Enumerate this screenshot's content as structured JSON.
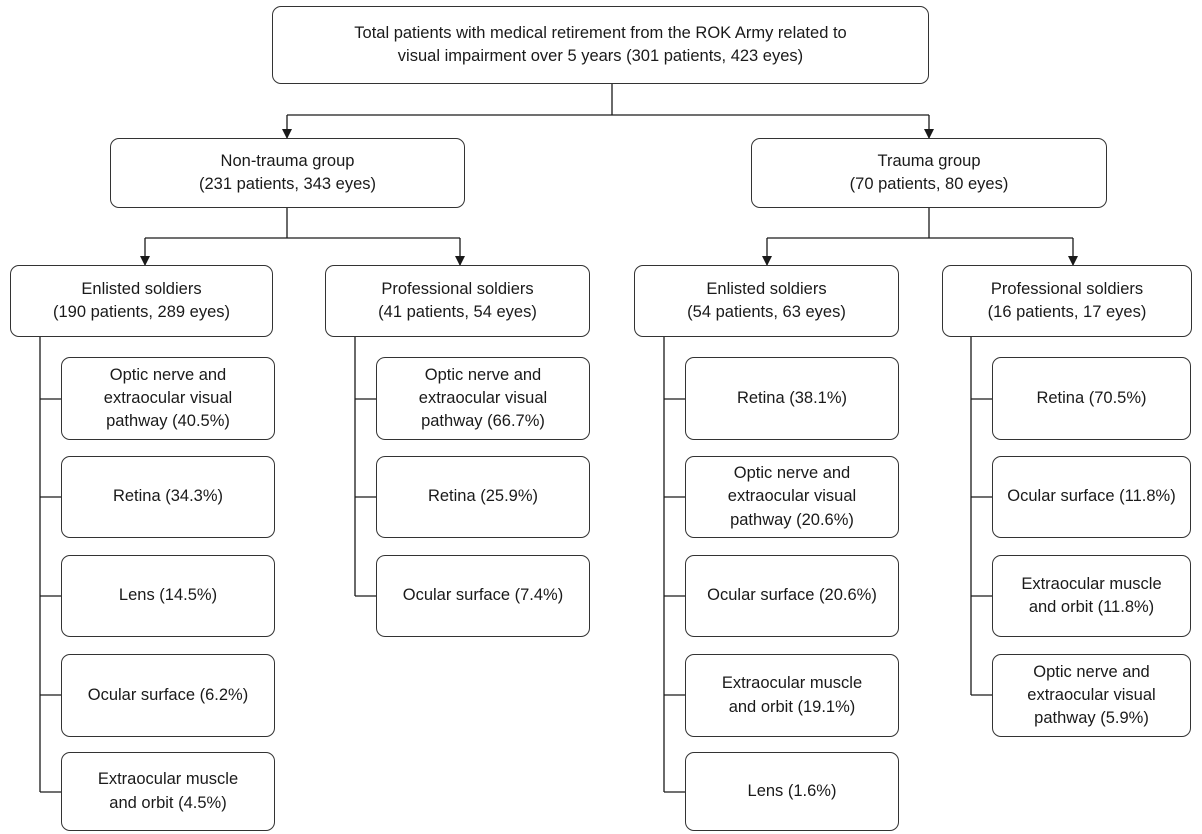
{
  "root": {
    "line1": "Total patients with medical retirement from the ROK Army related to",
    "line2": "visual impairment over 5 years (301 patients, 423 eyes)"
  },
  "non_trauma": {
    "title": "Non-trauma group",
    "count": "(231 patients, 343 eyes)",
    "enlisted": {
      "title": "Enlisted soldiers",
      "count": "(190 patients, 289 eyes)",
      "items": [
        [
          "Optic nerve and",
          "extraocular visual",
          "pathway (40.5%)"
        ],
        [
          "Retina (34.3%)"
        ],
        [
          "Lens (14.5%)"
        ],
        [
          "Ocular surface (6.2%)"
        ],
        [
          "Extraocular muscle",
          "and orbit (4.5%)"
        ]
      ]
    },
    "professional": {
      "title": "Professional soldiers",
      "count": "(41 patients, 54 eyes)",
      "items": [
        [
          "Optic nerve and",
          "extraocular visual",
          "pathway (66.7%)"
        ],
        [
          "Retina (25.9%)"
        ],
        [
          "Ocular surface (7.4%)"
        ]
      ]
    }
  },
  "trauma": {
    "title": "Trauma group",
    "count": "(70 patients, 80 eyes)",
    "enlisted": {
      "title": "Enlisted soldiers",
      "count": "(54 patients, 63 eyes)",
      "items": [
        [
          "Retina (38.1%)"
        ],
        [
          "Optic nerve and",
          "extraocular visual",
          "pathway (20.6%)"
        ],
        [
          "Ocular surface (20.6%)"
        ],
        [
          "Extraocular muscle",
          "and orbit (19.1%)"
        ],
        [
          "Lens (1.6%)"
        ]
      ]
    },
    "professional": {
      "title": "Professional soldiers",
      "count": "(16 patients, 17 eyes)",
      "items": [
        [
          "Retina (70.5%)"
        ],
        [
          "Ocular surface (11.8%)"
        ],
        [
          "Extraocular muscle",
          "and orbit (11.8%)"
        ],
        [
          "Optic nerve and",
          "extraocular visual",
          "pathway (5.9%)"
        ]
      ]
    }
  }
}
